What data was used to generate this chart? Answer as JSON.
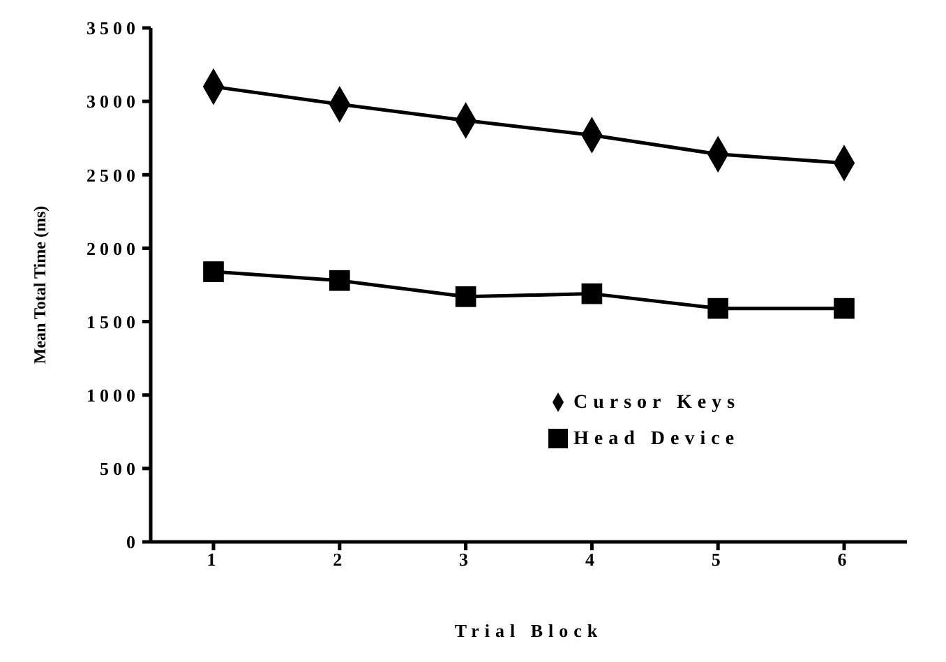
{
  "chart_data": {
    "type": "line",
    "xlabel": "Trial Block",
    "ylabel": "Mean Total Time (ms)",
    "categories": [
      "1",
      "2",
      "3",
      "4",
      "5",
      "6"
    ],
    "series": [
      {
        "name": "Cursor Keys",
        "color": "#000000",
        "marker": "diamond",
        "values": [
          3100,
          2980,
          2870,
          2770,
          2640,
          2580
        ]
      },
      {
        "name": "Head Device",
        "color": "#000000",
        "marker": "square",
        "values": [
          1840,
          1780,
          1670,
          1690,
          1590,
          1590
        ]
      }
    ],
    "ylim": [
      0,
      3500
    ],
    "yticks": [
      0,
      500,
      1000,
      1500,
      2000,
      2500,
      3000,
      3500
    ],
    "grid": false,
    "legend": "right",
    "line_style": "solid"
  }
}
